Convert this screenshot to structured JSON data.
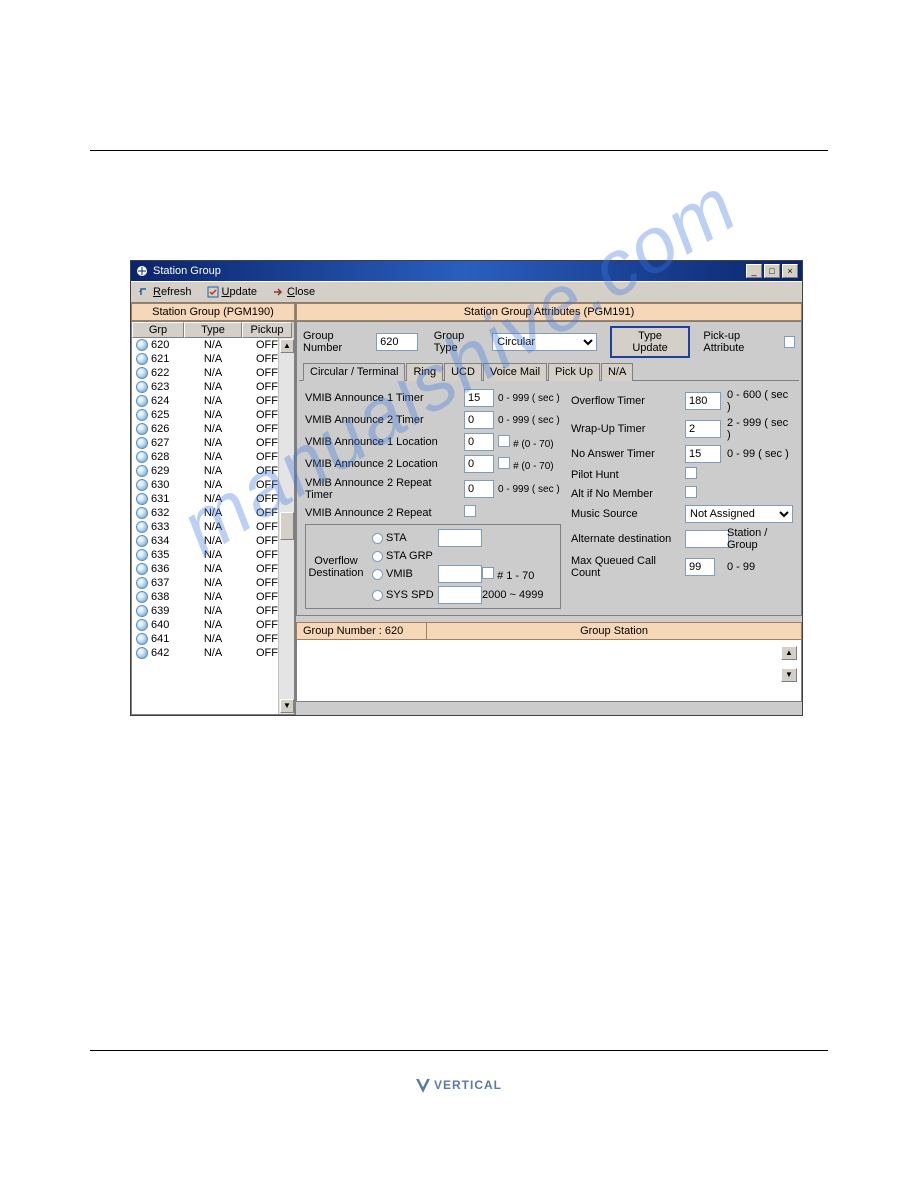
{
  "window": {
    "title": "Station Group",
    "min": "_",
    "max": "□",
    "close": "×"
  },
  "toolbar": {
    "refresh": "Refresh",
    "update": "Update",
    "close": "Close"
  },
  "left": {
    "header": "Station Group (PGM190)",
    "columns": {
      "grp": "Grp",
      "type": "Type",
      "pickup": "Pickup"
    },
    "rows": [
      {
        "g": "620",
        "t": "N/A",
        "p": "OFF"
      },
      {
        "g": "621",
        "t": "N/A",
        "p": "OFF"
      },
      {
        "g": "622",
        "t": "N/A",
        "p": "OFF"
      },
      {
        "g": "623",
        "t": "N/A",
        "p": "OFF"
      },
      {
        "g": "624",
        "t": "N/A",
        "p": "OFF"
      },
      {
        "g": "625",
        "t": "N/A",
        "p": "OFF"
      },
      {
        "g": "626",
        "t": "N/A",
        "p": "OFF"
      },
      {
        "g": "627",
        "t": "N/A",
        "p": "OFF"
      },
      {
        "g": "628",
        "t": "N/A",
        "p": "OFF"
      },
      {
        "g": "629",
        "t": "N/A",
        "p": "OFF"
      },
      {
        "g": "630",
        "t": "N/A",
        "p": "OFF"
      },
      {
        "g": "631",
        "t": "N/A",
        "p": "OFF"
      },
      {
        "g": "632",
        "t": "N/A",
        "p": "OFF"
      },
      {
        "g": "633",
        "t": "N/A",
        "p": "OFF"
      },
      {
        "g": "634",
        "t": "N/A",
        "p": "OFF"
      },
      {
        "g": "635",
        "t": "N/A",
        "p": "OFF"
      },
      {
        "g": "636",
        "t": "N/A",
        "p": "OFF"
      },
      {
        "g": "637",
        "t": "N/A",
        "p": "OFF"
      },
      {
        "g": "638",
        "t": "N/A",
        "p": "OFF"
      },
      {
        "g": "639",
        "t": "N/A",
        "p": "OFF"
      },
      {
        "g": "640",
        "t": "N/A",
        "p": "OFF"
      },
      {
        "g": "641",
        "t": "N/A",
        "p": "OFF"
      },
      {
        "g": "642",
        "t": "N/A",
        "p": "OFF"
      }
    ]
  },
  "right": {
    "header": "Station Group Attributes (PGM191)",
    "groupNumLabel": "Group Number",
    "groupNum": "620",
    "groupTypeLabel": "Group Type",
    "groupType": "Circular",
    "typeUpdateBtn": "Type Update",
    "pickupAttrLabel": "Pick-up Attribute",
    "tabs": [
      "Circular / Terminal",
      "Ring",
      "UCD",
      "Voice Mail",
      "Pick Up",
      "N/A"
    ],
    "leftFields": {
      "a1t": {
        "lbl": "VMIB Announce 1 Timer",
        "val": "15",
        "rng": "0 - 999 ( sec )"
      },
      "a2t": {
        "lbl": "VMIB Announce 2 Timer",
        "val": "0",
        "rng": "0 - 999 ( sec )"
      },
      "a1l": {
        "lbl": "VMIB Announce 1 Location",
        "val": "0",
        "rng": "# (0 - 70)"
      },
      "a2l": {
        "lbl": "VMIB Announce 2 Location",
        "val": "0",
        "rng": "# (0 - 70)"
      },
      "a2rt": {
        "lbl": "VMIB Announce 2 Repeat Timer",
        "val": "0",
        "rng": "0 - 999 ( sec )"
      },
      "a2r": {
        "lbl": "VMIB Announce 2 Repeat"
      }
    },
    "rightFields": {
      "ovt": {
        "lbl": "Overflow Timer",
        "val": "180",
        "rng": "0 - 600 ( sec )"
      },
      "wut": {
        "lbl": "Wrap-Up Timer",
        "val": "2",
        "rng": "2 - 999 ( sec )"
      },
      "nat": {
        "lbl": "No Answer Timer",
        "val": "15",
        "rng": "0 - 99 ( sec )"
      },
      "ph": {
        "lbl": "Pilot Hunt"
      },
      "anm": {
        "lbl": "Alt if No Member"
      },
      "ms": {
        "lbl": "Music Source",
        "val": "Not Assigned"
      },
      "ad": {
        "lbl": "Alternate destination",
        "suffix": "Station / Group"
      },
      "mqcc": {
        "lbl": "Max Queued Call Count",
        "val": "99",
        "rng": "0 - 99"
      }
    },
    "overflow": {
      "label1": "Overflow",
      "label2": "Destination",
      "opts": {
        "sta": {
          "txt": "STA"
        },
        "stagrp": {
          "txt": "STA GRP"
        },
        "vmib": {
          "txt": "VMIB",
          "rng": "#   1 - 70"
        },
        "sysspd": {
          "txt": "SYS SPD",
          "rng": "2000 ~ 4999"
        }
      }
    },
    "groupStation": {
      "left": "Group Number : 620",
      "right": "Group Station"
    },
    "spin": {
      "up": "▲",
      "down": "▼"
    }
  },
  "footer": "VERTICAL",
  "colors": {
    "titlebar_start": "#0a246a",
    "titlebar_mid": "#2a5fbf",
    "band": "#f6d7b8",
    "panel": "#cccccc",
    "input_border": "#7f9db9"
  }
}
